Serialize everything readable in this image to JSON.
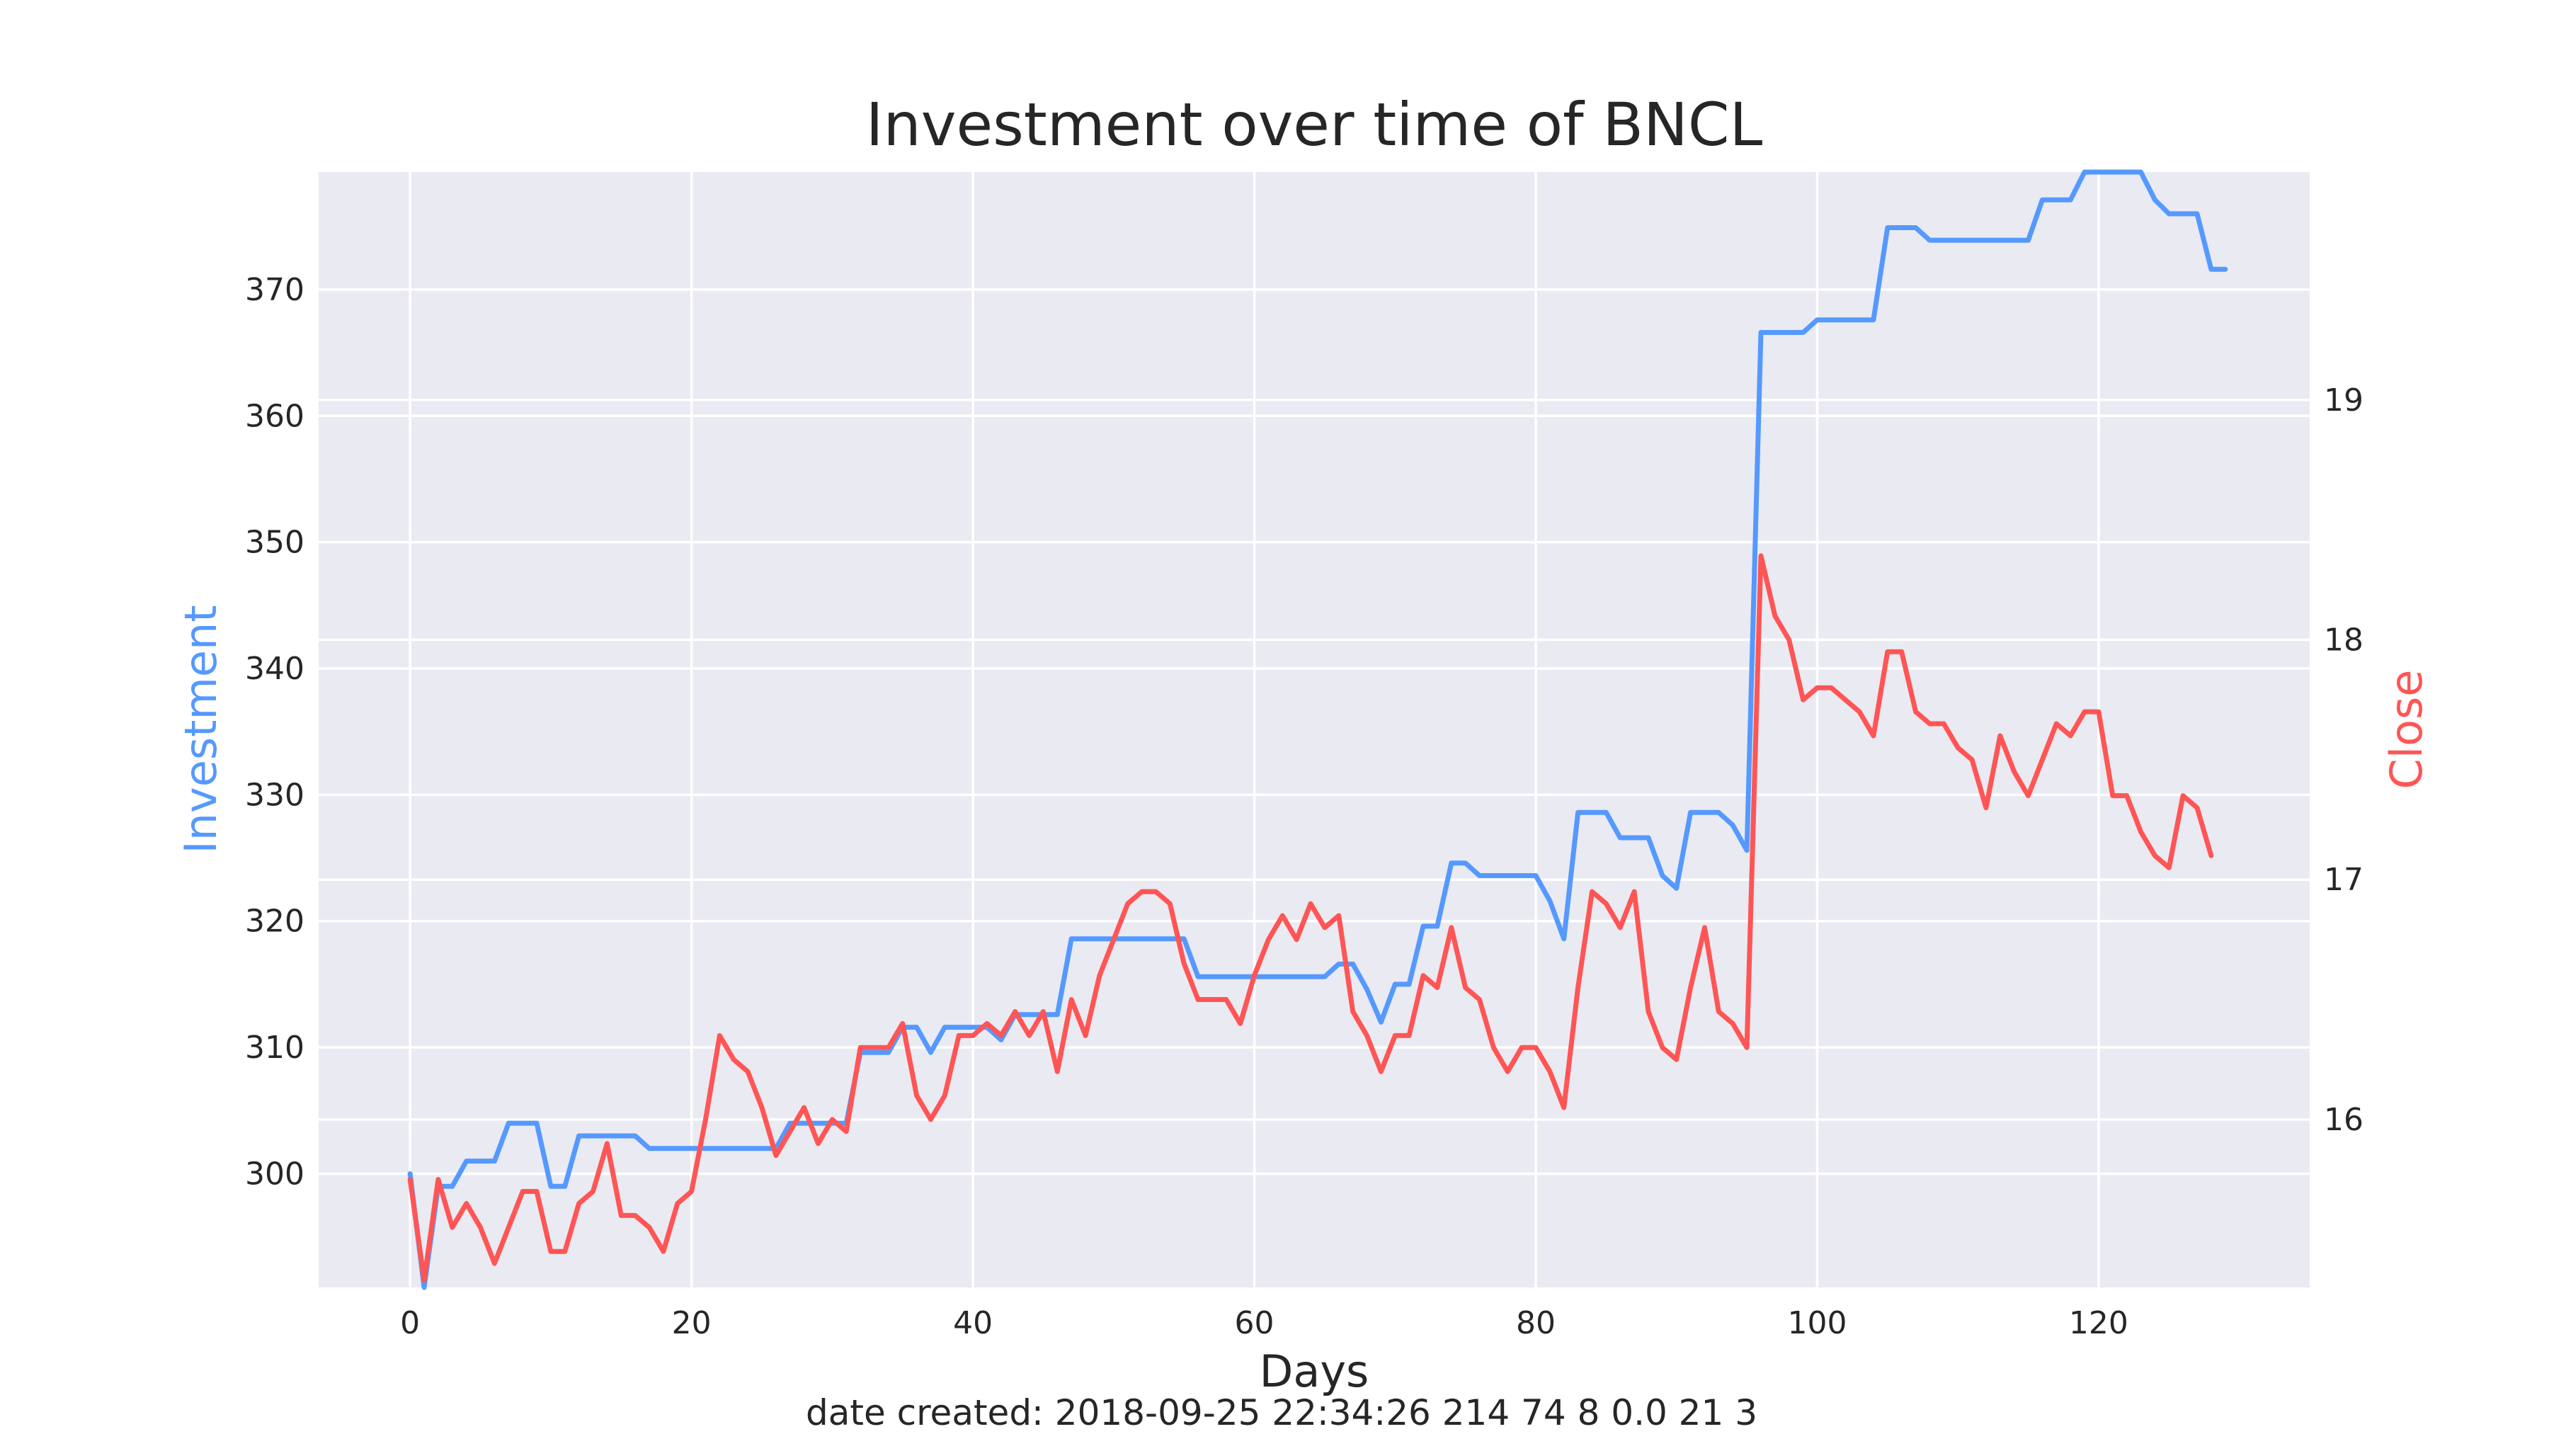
{
  "chart_data": {
    "type": "line",
    "title": "Investment over time of BNCL",
    "xlabel": "Days",
    "ylabel_left": "Investment",
    "ylabel_right": "Close",
    "xlim": [
      -6.5,
      135
    ],
    "ylim_left": [
      291,
      379.3
    ],
    "ylim_right": [
      15.3,
      19.95
    ],
    "x_ticks": [
      0,
      20,
      40,
      60,
      80,
      100,
      120
    ],
    "y_left_ticks": [
      300,
      310,
      320,
      330,
      340,
      350,
      360,
      370
    ],
    "y_right_ticks": [
      16,
      17,
      18,
      19
    ],
    "grid": true,
    "colors": {
      "investment": "#5599ff",
      "close": "#ff5555",
      "background": "#eaeaf2",
      "grid": "#ffffff"
    },
    "series": [
      {
        "name": "Investment",
        "axis": "left",
        "values": [
          300.0,
          291.0,
          299.0,
          299.0,
          301.0,
          301.0,
          301.0,
          304.0,
          304.0,
          304.0,
          299.0,
          299.0,
          303.0,
          303.0,
          303.0,
          303.0,
          303.0,
          302.0,
          302.0,
          302.0,
          302.0,
          302.0,
          302.0,
          302.0,
          302.0,
          302.0,
          302.0,
          304.0,
          304.0,
          304.0,
          304.0,
          304.0,
          309.6,
          309.6,
          309.6,
          311.6,
          311.6,
          309.6,
          311.6,
          311.6,
          311.6,
          311.6,
          310.6,
          312.6,
          312.6,
          312.6,
          312.6,
          318.6,
          318.6,
          318.6,
          318.6,
          318.6,
          318.6,
          318.6,
          318.6,
          318.6,
          315.6,
          315.6,
          315.6,
          315.6,
          315.6,
          315.6,
          315.6,
          315.6,
          315.6,
          315.6,
          316.6,
          316.6,
          314.6,
          312.0,
          315.0,
          315.0,
          319.6,
          319.6,
          324.6,
          324.6,
          323.6,
          323.6,
          323.6,
          323.6,
          323.6,
          321.6,
          318.6,
          328.6,
          328.6,
          328.6,
          326.6,
          326.6,
          326.6,
          323.6,
          322.6,
          328.6,
          328.6,
          328.6,
          327.6,
          325.6,
          366.6,
          366.6,
          366.6,
          366.6,
          367.6,
          367.6,
          367.6,
          367.6,
          367.6,
          374.9,
          374.9,
          374.9,
          373.9,
          373.9,
          373.9,
          373.9,
          373.9,
          373.9,
          373.9,
          373.9,
          377.1,
          377.1,
          377.1,
          379.3,
          379.3,
          379.3,
          379.3,
          379.3,
          377.1,
          376.0,
          376.0,
          376.0,
          371.6,
          371.6
        ]
      },
      {
        "name": "Close",
        "axis": "right",
        "values": [
          15.75,
          15.33,
          15.75,
          15.55,
          15.65,
          15.55,
          15.4,
          15.55,
          15.7,
          15.7,
          15.45,
          15.45,
          15.65,
          15.7,
          15.9,
          15.6,
          15.6,
          15.55,
          15.45,
          15.65,
          15.7,
          16.0,
          16.35,
          16.25,
          16.2,
          16.05,
          15.85,
          15.95,
          16.05,
          15.9,
          16.0,
          15.95,
          16.3,
          16.3,
          16.3,
          16.4,
          16.1,
          16.0,
          16.1,
          16.35,
          16.35,
          16.4,
          16.35,
          16.45,
          16.35,
          16.45,
          16.2,
          16.5,
          16.35,
          16.6,
          16.75,
          16.9,
          16.95,
          16.95,
          16.9,
          16.65,
          16.5,
          16.5,
          16.5,
          16.4,
          16.6,
          16.75,
          16.85,
          16.75,
          16.9,
          16.8,
          16.85,
          16.45,
          16.35,
          16.2,
          16.35,
          16.35,
          16.6,
          16.55,
          16.8,
          16.55,
          16.5,
          16.3,
          16.2,
          16.3,
          16.3,
          16.2,
          16.05,
          16.55,
          16.95,
          16.9,
          16.8,
          16.95,
          16.45,
          16.3,
          16.25,
          16.55,
          16.8,
          16.45,
          16.4,
          16.3,
          18.35,
          18.1,
          18.0,
          17.75,
          17.8,
          17.8,
          17.75,
          17.7,
          17.6,
          17.95,
          17.95,
          17.7,
          17.65,
          17.65,
          17.55,
          17.5,
          17.3,
          17.6,
          17.45,
          17.35,
          17.5,
          17.65,
          17.6,
          17.7,
          17.7,
          17.35,
          17.35,
          17.2,
          17.1,
          17.05,
          17.35,
          17.3,
          17.1
        ]
      }
    ]
  },
  "footer": "date created: 2018-09-25 22:34:26 214 74 8 0.0 21 3"
}
